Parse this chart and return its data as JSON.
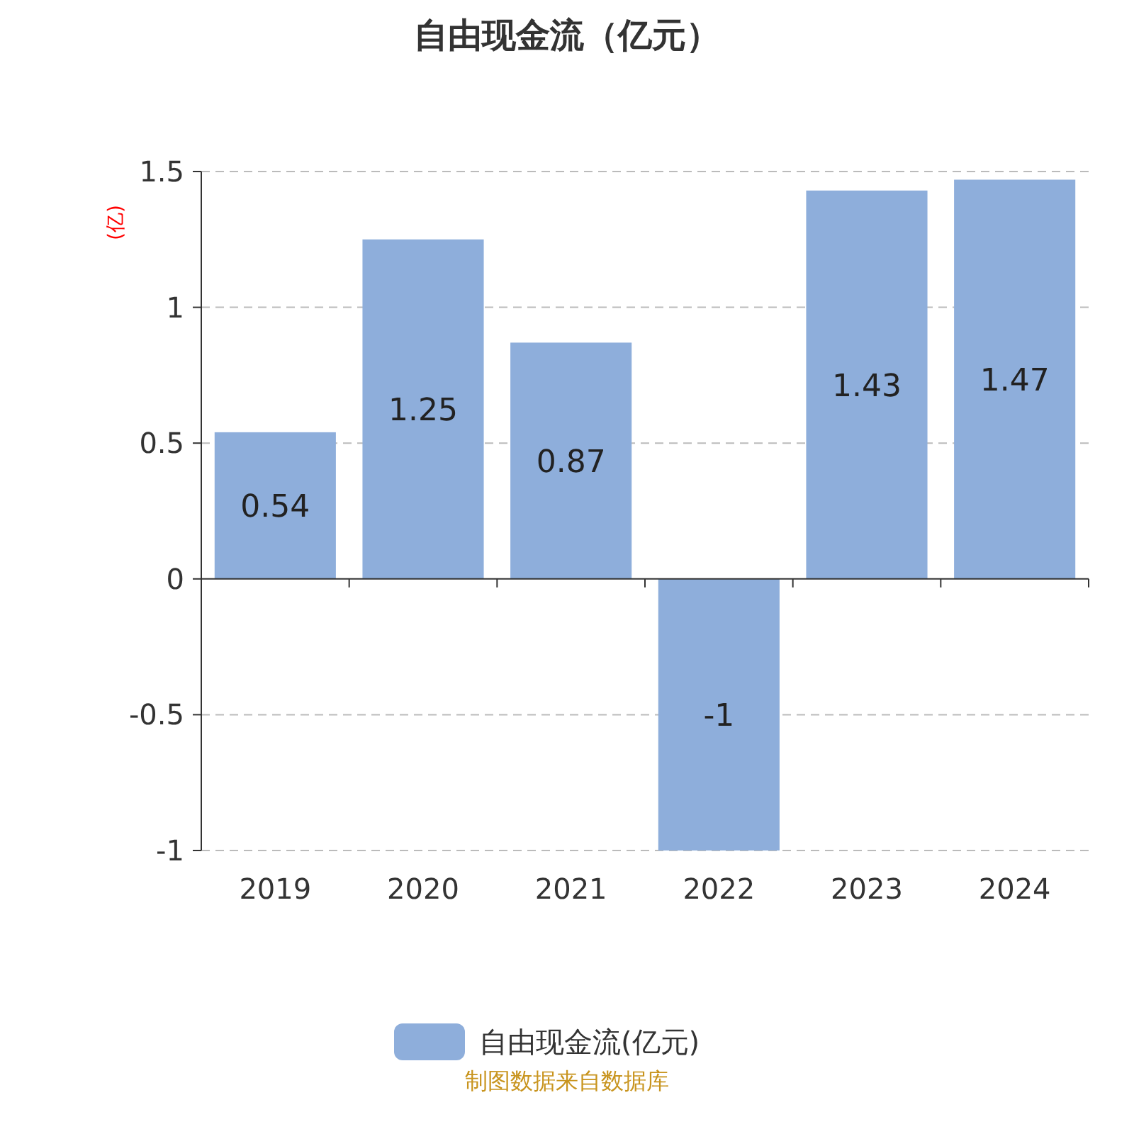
{
  "chart_data": {
    "type": "bar",
    "title": "自由现金流（亿元）",
    "ylabel": "(亿)",
    "categories": [
      "2019",
      "2020",
      "2021",
      "2022",
      "2023",
      "2024"
    ],
    "series": [
      {
        "name": "自由现金流(亿元)",
        "color": "#8eaedb",
        "values": [
          0.54,
          1.25,
          0.87,
          -1,
          1.43,
          1.47
        ]
      }
    ],
    "ylim": [
      -1,
      1.5
    ],
    "yticks": [
      -1,
      -0.5,
      0,
      0.5,
      1,
      1.5
    ],
    "grid": "y",
    "legend": "bottom",
    "data_labels": true,
    "annotations": [
      "制图数据来自数据库"
    ]
  }
}
